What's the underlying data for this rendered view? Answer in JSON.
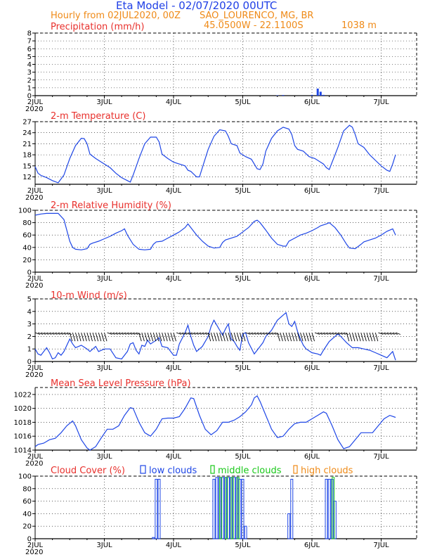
{
  "header": {
    "title": "Eta Model - 02/07/2020 00UTC",
    "subtitle_left": "Hourly from 02JUL2020, 00Z",
    "station": "SAO_LOURENCO, MG, BR",
    "coords": "45.0500W - 22.1100S",
    "elevation": "1038  m"
  },
  "colors": {
    "title_blue": "#1f3fe6",
    "subtitle_orange": "#ef8a17",
    "panel_title_red": "#e8302c",
    "line_blue": "#1e46e6",
    "green": "#19c819",
    "orange": "#ef8a17",
    "axis": "#000000"
  },
  "x_axis": {
    "labels": [
      "2JUL",
      "3JUL",
      "4JUL",
      "5JUL",
      "6JUL",
      "7JUL"
    ],
    "year_label": "2020"
  },
  "chart_data": [
    {
      "id": "precip",
      "type": "bar",
      "title": "Precipitation (mm/h)",
      "ylim": [
        0,
        8
      ],
      "yticks": [
        0,
        1,
        2,
        3,
        4,
        5,
        6,
        7,
        8
      ],
      "x_hours": [
        84,
        86,
        96,
        98,
        99,
        100
      ],
      "values": [
        0.05,
        0.08,
        0.1,
        0.9,
        0.5,
        0.1
      ]
    },
    {
      "id": "temp",
      "type": "line",
      "title": "2-m Temperature (C)",
      "ylim": [
        10,
        27
      ],
      "yticks": [
        12,
        15,
        18,
        21,
        24,
        27
      ],
      "points": [
        [
          0,
          14.8
        ],
        [
          1,
          13.0
        ],
        [
          2,
          12.4
        ],
        [
          4,
          11.8
        ],
        [
          6,
          11.0
        ],
        [
          8,
          10.4
        ],
        [
          10,
          12.5
        ],
        [
          12,
          17.0
        ],
        [
          14,
          20.5
        ],
        [
          16,
          22.5
        ],
        [
          17,
          22.4
        ],
        [
          18,
          21.0
        ],
        [
          19,
          18.2
        ],
        [
          21,
          17.0
        ],
        [
          23,
          16.0
        ],
        [
          26,
          14.5
        ],
        [
          28,
          13.0
        ],
        [
          30,
          11.8
        ],
        [
          32,
          11.0
        ],
        [
          33,
          10.6
        ],
        [
          34,
          12.5
        ],
        [
          36,
          17.0
        ],
        [
          38,
          21.0
        ],
        [
          40,
          22.8
        ],
        [
          42,
          22.8
        ],
        [
          43,
          21.5
        ],
        [
          44,
          18.2
        ],
        [
          46,
          17.0
        ],
        [
          48,
          16.0
        ],
        [
          50,
          15.5
        ],
        [
          52,
          15.0
        ],
        [
          53,
          13.8
        ],
        [
          54,
          13.5
        ],
        [
          56,
          12.0
        ],
        [
          57,
          12.0
        ],
        [
          58,
          14.5
        ],
        [
          60,
          19.5
        ],
        [
          62,
          23.0
        ],
        [
          64,
          24.8
        ],
        [
          66,
          24.5
        ],
        [
          67,
          23.0
        ],
        [
          68,
          21.0
        ],
        [
          70,
          20.5
        ],
        [
          71,
          18.5
        ],
        [
          73,
          17.5
        ],
        [
          75,
          16.8
        ],
        [
          76,
          15.5
        ],
        [
          77,
          14.2
        ],
        [
          78,
          14.0
        ],
        [
          79,
          15.5
        ],
        [
          80,
          19.0
        ],
        [
          82,
          22.5
        ],
        [
          84,
          24.5
        ],
        [
          86,
          25.5
        ],
        [
          88,
          25.0
        ],
        [
          89,
          23.5
        ],
        [
          90,
          20.5
        ],
        [
          91,
          19.5
        ],
        [
          93,
          19.0
        ],
        [
          95,
          17.5
        ],
        [
          97,
          17.0
        ],
        [
          99,
          16.0
        ],
        [
          100,
          15.5
        ],
        [
          101,
          14.5
        ],
        [
          102,
          14.0
        ],
        [
          103,
          16.0
        ],
        [
          105,
          20.0
        ],
        [
          107,
          24.5
        ],
        [
          109,
          26.0
        ],
        [
          110,
          25.5
        ],
        [
          111,
          23.5
        ],
        [
          112,
          21.0
        ],
        [
          114,
          20.0
        ],
        [
          116,
          18.0
        ],
        [
          118,
          16.5
        ],
        [
          120,
          15.0
        ],
        [
          122,
          13.8
        ],
        [
          123,
          13.5
        ],
        [
          124,
          15.5
        ],
        [
          125,
          18.0
        ]
      ]
    },
    {
      "id": "rh",
      "type": "line",
      "title": "2-m Relative Humidity (%)",
      "ylim": [
        0,
        100
      ],
      "yticks": [
        0,
        20,
        40,
        60,
        80,
        100
      ],
      "points": [
        [
          0,
          92
        ],
        [
          2,
          94
        ],
        [
          4,
          95
        ],
        [
          6,
          95
        ],
        [
          8,
          95
        ],
        [
          10,
          85
        ],
        [
          12,
          50
        ],
        [
          13,
          40
        ],
        [
          14,
          37
        ],
        [
          16,
          36
        ],
        [
          18,
          38
        ],
        [
          19,
          45
        ],
        [
          20,
          47
        ],
        [
          22,
          50
        ],
        [
          24,
          54
        ],
        [
          26,
          58
        ],
        [
          28,
          63
        ],
        [
          30,
          67
        ],
        [
          31,
          70
        ],
        [
          32,
          60
        ],
        [
          34,
          45
        ],
        [
          36,
          37
        ],
        [
          38,
          36
        ],
        [
          40,
          37
        ],
        [
          41,
          45
        ],
        [
          42,
          49
        ],
        [
          44,
          50
        ],
        [
          46,
          55
        ],
        [
          48,
          60
        ],
        [
          50,
          65
        ],
        [
          52,
          72
        ],
        [
          53,
          78
        ],
        [
          54,
          72
        ],
        [
          56,
          60
        ],
        [
          58,
          50
        ],
        [
          60,
          42
        ],
        [
          62,
          39
        ],
        [
          64,
          40
        ],
        [
          65,
          48
        ],
        [
          66,
          52
        ],
        [
          68,
          55
        ],
        [
          70,
          58
        ],
        [
          72,
          65
        ],
        [
          74,
          72
        ],
        [
          76,
          82
        ],
        [
          77,
          84
        ],
        [
          78,
          80
        ],
        [
          80,
          68
        ],
        [
          82,
          55
        ],
        [
          84,
          45
        ],
        [
          86,
          42
        ],
        [
          87,
          42
        ],
        [
          88,
          50
        ],
        [
          90,
          55
        ],
        [
          92,
          60
        ],
        [
          94,
          63
        ],
        [
          96,
          67
        ],
        [
          98,
          72
        ],
        [
          99,
          75
        ],
        [
          101,
          78
        ],
        [
          102,
          80
        ],
        [
          104,
          72
        ],
        [
          106,
          60
        ],
        [
          108,
          45
        ],
        [
          109,
          39
        ],
        [
          111,
          38
        ],
        [
          113,
          45
        ],
        [
          114,
          49
        ],
        [
          116,
          52
        ],
        [
          118,
          55
        ],
        [
          120,
          60
        ],
        [
          122,
          66
        ],
        [
          124,
          70
        ],
        [
          125,
          60
        ]
      ]
    },
    {
      "id": "wind",
      "type": "line",
      "title": "10-m Wind (m/s)",
      "ylim": [
        0,
        5
      ],
      "yticks": [
        0,
        1,
        2,
        3,
        4,
        5
      ],
      "points": [
        [
          0,
          1.0
        ],
        [
          1,
          0.6
        ],
        [
          2,
          0.5
        ],
        [
          4,
          1.1
        ],
        [
          5,
          0.7
        ],
        [
          6,
          0.2
        ],
        [
          7,
          0.3
        ],
        [
          8,
          0.7
        ],
        [
          9,
          0.5
        ],
        [
          10,
          0.8
        ],
        [
          12,
          1.8
        ],
        [
          13,
          1.4
        ],
        [
          14,
          1.1
        ],
        [
          16,
          1.3
        ],
        [
          18,
          1.0
        ],
        [
          19,
          0.8
        ],
        [
          20,
          1.0
        ],
        [
          21,
          1.2
        ],
        [
          22,
          0.8
        ],
        [
          24,
          1.0
        ],
        [
          26,
          1.0
        ],
        [
          28,
          0.3
        ],
        [
          30,
          0.2
        ],
        [
          32,
          0.8
        ],
        [
          33,
          1.4
        ],
        [
          34,
          1.5
        ],
        [
          35,
          0.9
        ],
        [
          36,
          0.6
        ],
        [
          37,
          1.3
        ],
        [
          38,
          1.2
        ],
        [
          39,
          1.7
        ],
        [
          40,
          1.4
        ],
        [
          42,
          1.7
        ],
        [
          43,
          1.9
        ],
        [
          44,
          1.2
        ],
        [
          46,
          1.1
        ],
        [
          48,
          0.5
        ],
        [
          49,
          0.5
        ],
        [
          50,
          1.4
        ],
        [
          52,
          2.3
        ],
        [
          53,
          2.9
        ],
        [
          54,
          2.0
        ],
        [
          55,
          1.3
        ],
        [
          56,
          0.8
        ],
        [
          58,
          1.2
        ],
        [
          60,
          2.0
        ],
        [
          61,
          2.8
        ],
        [
          62,
          3.3
        ],
        [
          63,
          2.9
        ],
        [
          64,
          2.5
        ],
        [
          65,
          2.1
        ],
        [
          66,
          2.6
        ],
        [
          67,
          3.0
        ],
        [
          68,
          1.8
        ],
        [
          69,
          1.6
        ],
        [
          70,
          1.2
        ],
        [
          71,
          0.9
        ],
        [
          72,
          2.2
        ],
        [
          73,
          2.3
        ],
        [
          74,
          1.5
        ],
        [
          76,
          0.6
        ],
        [
          78,
          1.2
        ],
        [
          79,
          1.5
        ],
        [
          80,
          2.0
        ],
        [
          82,
          2.5
        ],
        [
          84,
          3.3
        ],
        [
          86,
          3.7
        ],
        [
          87,
          3.9
        ],
        [
          88,
          3.0
        ],
        [
          89,
          2.8
        ],
        [
          90,
          3.2
        ],
        [
          91,
          2.4
        ],
        [
          92,
          1.8
        ],
        [
          93,
          1.3
        ],
        [
          94,
          1.0
        ],
        [
          96,
          0.7
        ],
        [
          98,
          0.6
        ],
        [
          99,
          0.5
        ],
        [
          100,
          0.9
        ],
        [
          102,
          1.6
        ],
        [
          104,
          2.0
        ],
        [
          105,
          2.2
        ],
        [
          106,
          2.0
        ],
        [
          108,
          1.5
        ],
        [
          110,
          1.1
        ],
        [
          112,
          1.1
        ],
        [
          114,
          1.0
        ],
        [
          116,
          0.9
        ],
        [
          118,
          0.7
        ],
        [
          120,
          0.5
        ],
        [
          122,
          0.3
        ],
        [
          124,
          0.8
        ],
        [
          125,
          0.1
        ]
      ]
    },
    {
      "id": "mslp",
      "type": "line",
      "title": "Mean Sea Level Pressure (hPa)",
      "ylim": [
        1014,
        1023
      ],
      "yticks": [
        1014,
        1016,
        1018,
        1020,
        1022
      ],
      "points": [
        [
          0,
          1014.5
        ],
        [
          1,
          1014.8
        ],
        [
          3,
          1015.0
        ],
        [
          5,
          1015.5
        ],
        [
          7,
          1015.7
        ],
        [
          9,
          1016.5
        ],
        [
          11,
          1017.5
        ],
        [
          13,
          1018.2
        ],
        [
          14,
          1017.5
        ],
        [
          16,
          1015.5
        ],
        [
          18,
          1014.3
        ],
        [
          19,
          1014.0
        ],
        [
          21,
          1014.5
        ],
        [
          23,
          1015.8
        ],
        [
          25,
          1017.0
        ],
        [
          27,
          1017.0
        ],
        [
          29,
          1017.5
        ],
        [
          31,
          1019.0
        ],
        [
          33,
          1020.1
        ],
        [
          34,
          1020.0
        ],
        [
          36,
          1018.0
        ],
        [
          38,
          1016.5
        ],
        [
          40,
          1016.0
        ],
        [
          42,
          1017.0
        ],
        [
          44,
          1018.5
        ],
        [
          46,
          1018.6
        ],
        [
          48,
          1018.6
        ],
        [
          50,
          1018.8
        ],
        [
          52,
          1020.0
        ],
        [
          54,
          1021.5
        ],
        [
          55,
          1021.4
        ],
        [
          57,
          1019.0
        ],
        [
          59,
          1017.0
        ],
        [
          61,
          1016.2
        ],
        [
          63,
          1016.8
        ],
        [
          65,
          1018.0
        ],
        [
          67,
          1018.0
        ],
        [
          69,
          1018.3
        ],
        [
          71,
          1018.8
        ],
        [
          73,
          1019.5
        ],
        [
          75,
          1020.5
        ],
        [
          76,
          1021.5
        ],
        [
          77,
          1021.8
        ],
        [
          78,
          1021.0
        ],
        [
          80,
          1019.0
        ],
        [
          82,
          1017.0
        ],
        [
          84,
          1015.8
        ],
        [
          86,
          1016.0
        ],
        [
          88,
          1017.0
        ],
        [
          90,
          1017.8
        ],
        [
          92,
          1018.0
        ],
        [
          94,
          1018.0
        ],
        [
          96,
          1018.5
        ],
        [
          98,
          1019.0
        ],
        [
          100,
          1019.5
        ],
        [
          101,
          1019.3
        ],
        [
          103,
          1017.5
        ],
        [
          105,
          1015.5
        ],
        [
          107,
          1014.2
        ],
        [
          109,
          1014.5
        ],
        [
          111,
          1015.5
        ],
        [
          113,
          1016.5
        ],
        [
          115,
          1016.5
        ],
        [
          117,
          1016.5
        ],
        [
          119,
          1017.5
        ],
        [
          121,
          1018.5
        ],
        [
          123,
          1019.0
        ],
        [
          125,
          1018.7
        ]
      ]
    },
    {
      "id": "clouds",
      "type": "bar",
      "title": "Cloud Cover (%)",
      "ylim": [
        0,
        100
      ],
      "yticks": [
        0,
        20,
        40,
        60,
        80,
        100
      ],
      "legend": [
        "low clouds",
        "middle clouds",
        "high clouds"
      ],
      "series": [
        {
          "name": "low clouds",
          "x_hours": [
            41,
            42,
            43,
            62,
            63,
            64,
            65,
            66,
            67,
            68,
            69,
            70,
            71,
            72,
            72,
            73,
            88,
            89,
            101,
            102,
            103,
            104
          ],
          "values": [
            2,
            95,
            95,
            95,
            98,
            98,
            98,
            98,
            98,
            98,
            98,
            98,
            95,
            95,
            40,
            20,
            40,
            95,
            95,
            95,
            95,
            60
          ]
        },
        {
          "name": "middle clouds",
          "x_hours": [
            64,
            66,
            68,
            70,
            103
          ],
          "values": [
            98,
            98,
            98,
            98,
            98
          ]
        },
        {
          "name": "high clouds",
          "x_hours": [],
          "values": []
        }
      ]
    }
  ]
}
